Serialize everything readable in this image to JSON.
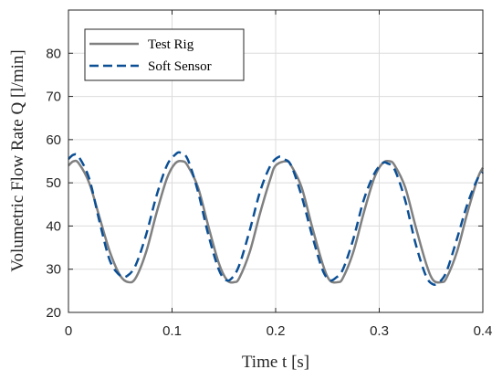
{
  "chart_data": {
    "type": "line",
    "xlabel": "Time t [s]",
    "ylabel": "Volumetric Flow Rate Q [l/min]",
    "xlim": [
      0,
      0.4
    ],
    "ylim": [
      20,
      90
    ],
    "xticks": [
      0,
      0.1,
      0.2,
      0.3,
      0.4
    ],
    "xtick_labels": [
      "0",
      "0.1",
      "0.2",
      "0.3",
      "0.4"
    ],
    "yticks": [
      20,
      30,
      40,
      50,
      60,
      70,
      80
    ],
    "ytick_labels": [
      "20",
      "30",
      "40",
      "50",
      "60",
      "70",
      "80"
    ],
    "grid": true,
    "legend": {
      "position": "top-left"
    },
    "series": [
      {
        "name": "Test Rig",
        "color": "#808080",
        "style": "solid",
        "x": [
          0,
          0.005,
          0.01,
          0.02,
          0.03,
          0.04,
          0.05,
          0.058,
          0.065,
          0.075,
          0.085,
          0.095,
          0.103,
          0.11,
          0.115,
          0.125,
          0.135,
          0.145,
          0.153,
          0.16,
          0.165,
          0.175,
          0.185,
          0.195,
          0.2,
          0.21,
          0.215,
          0.225,
          0.235,
          0.245,
          0.252,
          0.26,
          0.265,
          0.275,
          0.285,
          0.295,
          0.303,
          0.31,
          0.315,
          0.325,
          0.335,
          0.345,
          0.352,
          0.36,
          0.365,
          0.375,
          0.385,
          0.395,
          0.4
        ],
        "y": [
          54,
          55,
          54.5,
          50,
          42,
          34,
          28.5,
          27,
          28,
          34,
          43,
          51,
          54.5,
          55,
          54,
          49,
          40,
          31.5,
          27.5,
          27,
          28,
          34,
          43,
          51,
          54,
          55,
          54,
          49,
          40,
          31.5,
          27.5,
          27,
          28,
          34,
          43,
          51,
          54.5,
          55,
          54,
          49,
          40,
          31.5,
          27.5,
          27,
          28,
          34,
          43,
          51,
          53.5
        ]
      },
      {
        "name": "Soft Sensor",
        "color": "#0b4f95",
        "style": "dashed",
        "x": [
          0,
          0.005,
          0.01,
          0.02,
          0.03,
          0.04,
          0.05,
          0.057,
          0.065,
          0.075,
          0.085,
          0.095,
          0.103,
          0.108,
          0.115,
          0.125,
          0.135,
          0.145,
          0.152,
          0.158,
          0.165,
          0.175,
          0.185,
          0.195,
          0.203,
          0.208,
          0.215,
          0.225,
          0.235,
          0.245,
          0.252,
          0.258,
          0.265,
          0.275,
          0.285,
          0.295,
          0.303,
          0.308,
          0.315,
          0.325,
          0.335,
          0.345,
          0.352,
          0.358,
          0.365,
          0.375,
          0.385,
          0.395,
          0.4
        ],
        "y": [
          55.5,
          56.5,
          56,
          51,
          41,
          32,
          28.5,
          28.5,
          31,
          38,
          47,
          54,
          56.5,
          57,
          55.5,
          48,
          38,
          30,
          27.5,
          28,
          31,
          39,
          48,
          54,
          56,
          55.5,
          54,
          47,
          38,
          30,
          27.5,
          28,
          30,
          37,
          46,
          52,
          54.5,
          54.5,
          53,
          46,
          36,
          28.5,
          26.5,
          27,
          29.5,
          37,
          45,
          51,
          52.5
        ]
      }
    ]
  }
}
